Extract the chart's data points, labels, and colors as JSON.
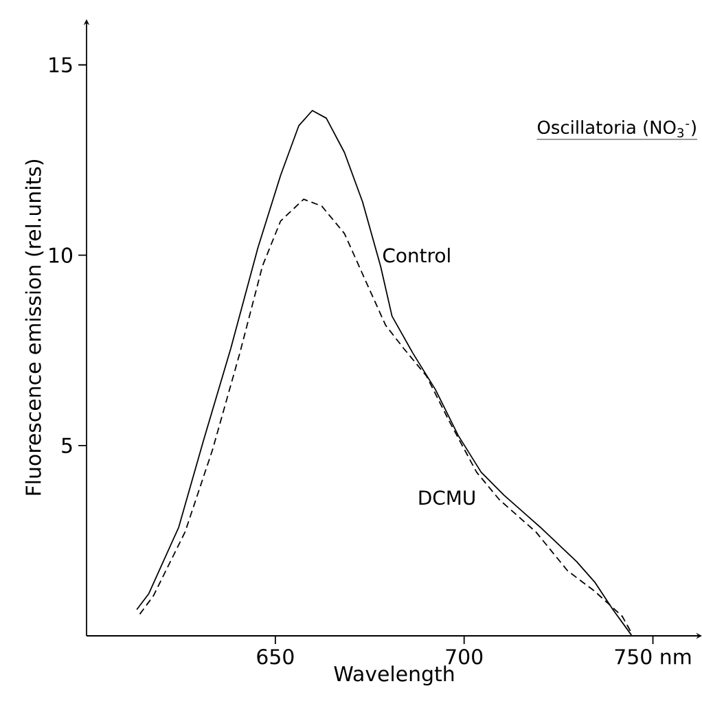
{
  "chart_data": {
    "type": "line",
    "title": "Oscillatoria (NO$_{3}$$^{-}$)",
    "xlabel": "Wavelength",
    "ylabel": "Fluorescence emission (rel.units)",
    "xlim": [
      600,
      763
    ],
    "ylim": [
      0,
      16.2
    ],
    "xticks": [
      650,
      700,
      {
        "value": 750,
        "label": "750 nm"
      }
    ],
    "yticks": [
      5,
      10,
      15
    ],
    "marker": "none",
    "series": [
      {
        "name": "Control",
        "color": "#000000",
        "line_style": "solid",
        "x": [
          613.3,
          616.5,
          624.4,
          631,
          638.2,
          645.4,
          651.4,
          656.2,
          659.8,
          663.5,
          668.3,
          673.1,
          677.9,
          680.9,
          686.4,
          692.4,
          698.4,
          704.5,
          710.5,
          720.1,
          729.8,
          734.6,
          739.4,
          744.3
        ],
        "values": [
          0.69,
          1.11,
          2.85,
          5.14,
          7.55,
          10.2,
          12.1,
          13.4,
          13.8,
          13.6,
          12.7,
          11.4,
          9.7,
          8.4,
          7.43,
          6.47,
          5.27,
          4.3,
          3.7,
          2.86,
          1.95,
          1.41,
          0.69,
          0.02
        ]
      },
      {
        "name": "DCMU",
        "color": "#000000",
        "line_style": "dashed",
        "x": [
          614.1,
          617.7,
          626.1,
          633.4,
          640.6,
          646.6,
          651.4,
          657.5,
          662.3,
          668.3,
          674.3,
          679.2,
          684,
          690,
          696.1,
          703.3,
          709.3,
          719,
          727.4,
          734.6,
          741.9,
          744.3
        ],
        "values": [
          0.57,
          1.05,
          2.73,
          4.9,
          7.43,
          9.72,
          10.9,
          11.47,
          11.29,
          10.57,
          9.24,
          8.16,
          7.55,
          6.83,
          5.63,
          4.3,
          3.58,
          2.73,
          1.71,
          1.17,
          0.51,
          0.08
        ]
      }
    ]
  }
}
